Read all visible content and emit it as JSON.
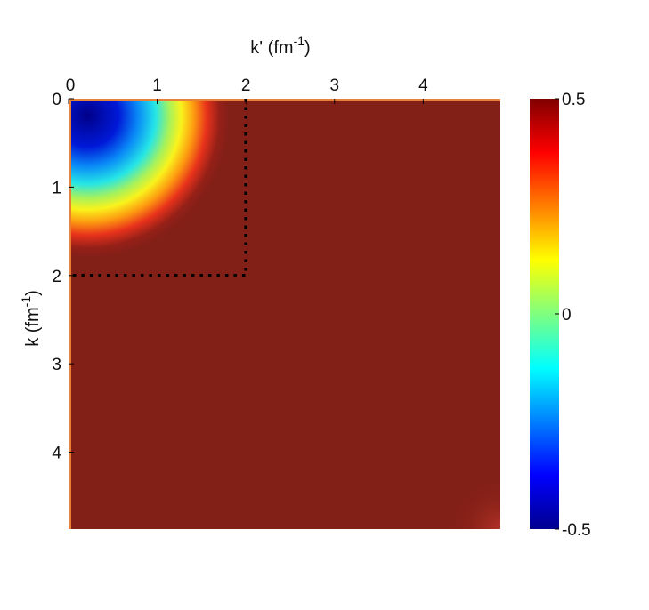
{
  "chart_data": {
    "type": "heatmap",
    "title": "",
    "xlabel": "k' (fm",
    "xlabel_sup": "-1",
    "xlabel_close": ")",
    "ylabel": "k (fm",
    "ylabel_sup": "-1",
    "ylabel_close": ")",
    "x_axis_position": "top",
    "y_axis_direction": "downward",
    "xlim": [
      0,
      4.87
    ],
    "ylim": [
      0,
      4.87
    ],
    "xticks": [
      0,
      1,
      2,
      3,
      4
    ],
    "yticks": [
      0,
      1,
      2,
      3,
      4
    ],
    "xtick_labels": [
      "0",
      "1",
      "2",
      "3",
      "4"
    ],
    "ytick_labels": [
      "0",
      "1",
      "2",
      "3",
      "4"
    ],
    "colorbar": {
      "colormap": "jet",
      "range": [
        -0.5,
        0.5
      ],
      "ticks": [
        0.5,
        0,
        -0.5
      ],
      "tick_labels": [
        "0.5",
        "0",
        "-0.5"
      ]
    },
    "field_description": {
      "background_value": 0.5,
      "min_value": -0.5,
      "min_location": [
        0.3,
        0.3
      ],
      "transition_radius": 1.4
    },
    "annotation_box": {
      "x": [
        0,
        2
      ],
      "y": [
        0,
        2
      ],
      "style": "dotted"
    },
    "grid": false
  }
}
